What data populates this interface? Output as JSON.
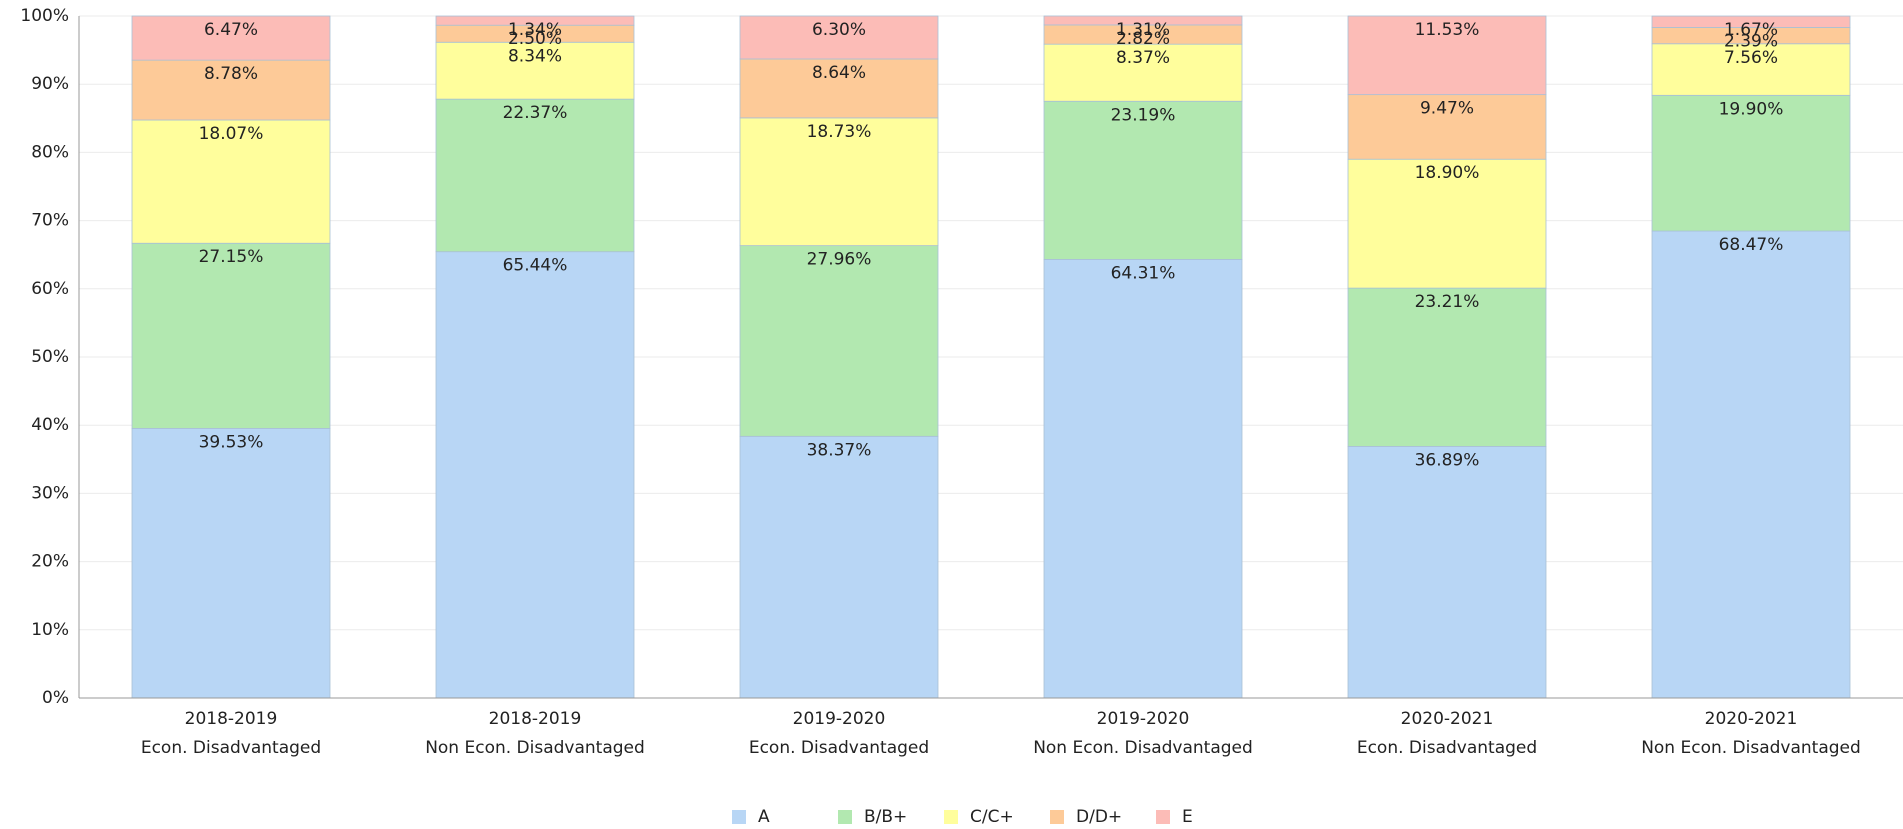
{
  "chart_data": {
    "type": "stacked_bar",
    "categories": [
      [
        "2018-2019",
        "Econ. Disadvantaged"
      ],
      [
        "2018-2019",
        "Non Econ. Disadvantaged"
      ],
      [
        "2019-2020",
        "Econ. Disadvantaged"
      ],
      [
        "2019-2020",
        "Non Econ. Disadvantaged"
      ],
      [
        "2020-2021",
        "Econ. Disadvantaged"
      ],
      [
        "2020-2021",
        "Non Econ. Disadvantaged"
      ]
    ],
    "series": [
      {
        "name": "A",
        "color": "#b8d6f5",
        "values": [
          39.53,
          65.44,
          38.37,
          64.31,
          36.89,
          68.47
        ],
        "value_labels": [
          "39.53%",
          "65.44%",
          "38.37%",
          "64.31%",
          "36.89%",
          "68.47%"
        ]
      },
      {
        "name": "B/B+",
        "color": "#b2e8b0",
        "values": [
          27.15,
          22.37,
          27.96,
          23.19,
          23.21,
          19.9
        ],
        "value_labels": [
          "27.15%",
          "22.37%",
          "27.96%",
          "23.19%",
          "23.21%",
          "19.90%"
        ]
      },
      {
        "name": "C/C+",
        "color": "#fffe9c",
        "values": [
          18.07,
          8.34,
          18.73,
          8.37,
          18.9,
          7.56
        ],
        "value_labels": [
          "18.07%",
          "8.34%",
          "18.73%",
          "8.37%",
          "18.90%",
          "7.56%"
        ]
      },
      {
        "name": "D/D+",
        "color": "#fdca98",
        "values": [
          8.78,
          2.5,
          8.64,
          2.82,
          9.47,
          2.39
        ],
        "value_labels": [
          "8.78%",
          "2.50%",
          "8.64%",
          "2.82%",
          "9.47%",
          "2.39%"
        ]
      },
      {
        "name": "E",
        "color": "#fcbcb7",
        "values": [
          6.47,
          1.34,
          6.3,
          1.31,
          11.53,
          1.67
        ],
        "value_labels": [
          "6.47%",
          "1.34%",
          "6.30%",
          "1.31%",
          "11.53%",
          "1.67%"
        ]
      }
    ],
    "ylim": [
      0,
      100
    ],
    "yticks": [
      {
        "value": 0,
        "label": "0%"
      },
      {
        "value": 10,
        "label": "10%"
      },
      {
        "value": 20,
        "label": "20%"
      },
      {
        "value": 30,
        "label": "30%"
      },
      {
        "value": 40,
        "label": "40%"
      },
      {
        "value": 50,
        "label": "50%"
      },
      {
        "value": 60,
        "label": "60%"
      },
      {
        "value": 70,
        "label": "70%"
      },
      {
        "value": 80,
        "label": "80%"
      },
      {
        "value": 90,
        "label": "90%"
      },
      {
        "value": 100,
        "label": "100%"
      }
    ],
    "grid": true,
    "legend": "bottom"
  }
}
